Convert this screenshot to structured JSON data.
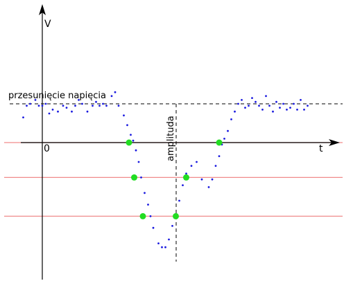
{
  "labels": {
    "y_axis": "V",
    "x_axis": "t",
    "origin": "0",
    "offset": "przesunięcie napięcia",
    "amplitude": "amplituda"
  },
  "colors": {
    "axes": "#000000",
    "dots": "#1a1adf",
    "markers": "#22dd22",
    "threshold_lines": "#f08a8a",
    "dashed": "#000000"
  },
  "chart_data": {
    "type": "scatter",
    "title": "",
    "xlabel": "t",
    "ylabel": "V",
    "x_origin_label": "0",
    "baseline_label": "przesunięcie napięcia",
    "baseline_value": 1.0,
    "amplitude_label": "amplituda",
    "threshold_levels": [
      0.0,
      -0.9,
      -1.9
    ],
    "markers": [
      {
        "x": 2.5,
        "y": 0.0
      },
      {
        "x": 2.65,
        "y": -0.9
      },
      {
        "x": 2.9,
        "y": -1.9
      },
      {
        "x": 3.85,
        "y": -1.9
      },
      {
        "x": 4.15,
        "y": -0.9
      },
      {
        "x": 5.1,
        "y": 0.0
      }
    ],
    "series": [
      {
        "x": [
          -0.55,
          -0.45,
          -0.35,
          -0.2,
          -0.1,
          0.0,
          0.1,
          0.2,
          0.3,
          0.45,
          0.6,
          0.7,
          0.85,
          0.95,
          1.05,
          1.15,
          1.3,
          1.45,
          1.55,
          1.65,
          1.75,
          1.85,
          2.0,
          2.1,
          2.2,
          2.35,
          2.45,
          2.55,
          2.62,
          2.7,
          2.78,
          2.85,
          2.95,
          3.05,
          3.12,
          3.2,
          3.35,
          3.45,
          3.55,
          3.65,
          3.75,
          3.85,
          3.95,
          4.05,
          4.15,
          4.3,
          4.45,
          4.6,
          4.8,
          4.9,
          5.0,
          5.1,
          5.18,
          5.25,
          5.35,
          5.45,
          5.55,
          5.65,
          5.75,
          5.85,
          5.95,
          6.05,
          6.15,
          6.25,
          6.35,
          6.45,
          6.55,
          6.65,
          6.75,
          6.85,
          6.95,
          7.05,
          7.15,
          7.25,
          7.35,
          7.45,
          7.55,
          7.65
        ],
        "y": [
          0.65,
          0.95,
          1.0,
          1.1,
          0.95,
          0.95,
          1.0,
          0.75,
          0.85,
          0.8,
          0.95,
          0.9,
          0.8,
          0.95,
          1.1,
          1.0,
          0.8,
          0.95,
          1.05,
          0.95,
          1.0,
          0.95,
          1.2,
          1.3,
          0.95,
          0.7,
          0.45,
          0.2,
          0.05,
          -0.2,
          -0.5,
          -0.9,
          -1.3,
          -1.6,
          -1.9,
          -2.2,
          -2.6,
          -2.7,
          -2.7,
          -2.5,
          -2.15,
          -1.9,
          -1.5,
          -1.1,
          -0.8,
          -0.6,
          -0.5,
          -0.95,
          -1.15,
          -0.95,
          -0.6,
          -0.35,
          -0.05,
          0.1,
          0.3,
          0.6,
          0.8,
          1.0,
          1.1,
          0.9,
          0.95,
          1.15,
          1.05,
          0.95,
          0.85,
          1.2,
          0.95,
          0.8,
          1.05,
          0.9,
          1.0,
          0.85,
          0.9,
          1.0,
          0.85,
          1.1,
          0.85,
          0.95
        ]
      }
    ]
  }
}
